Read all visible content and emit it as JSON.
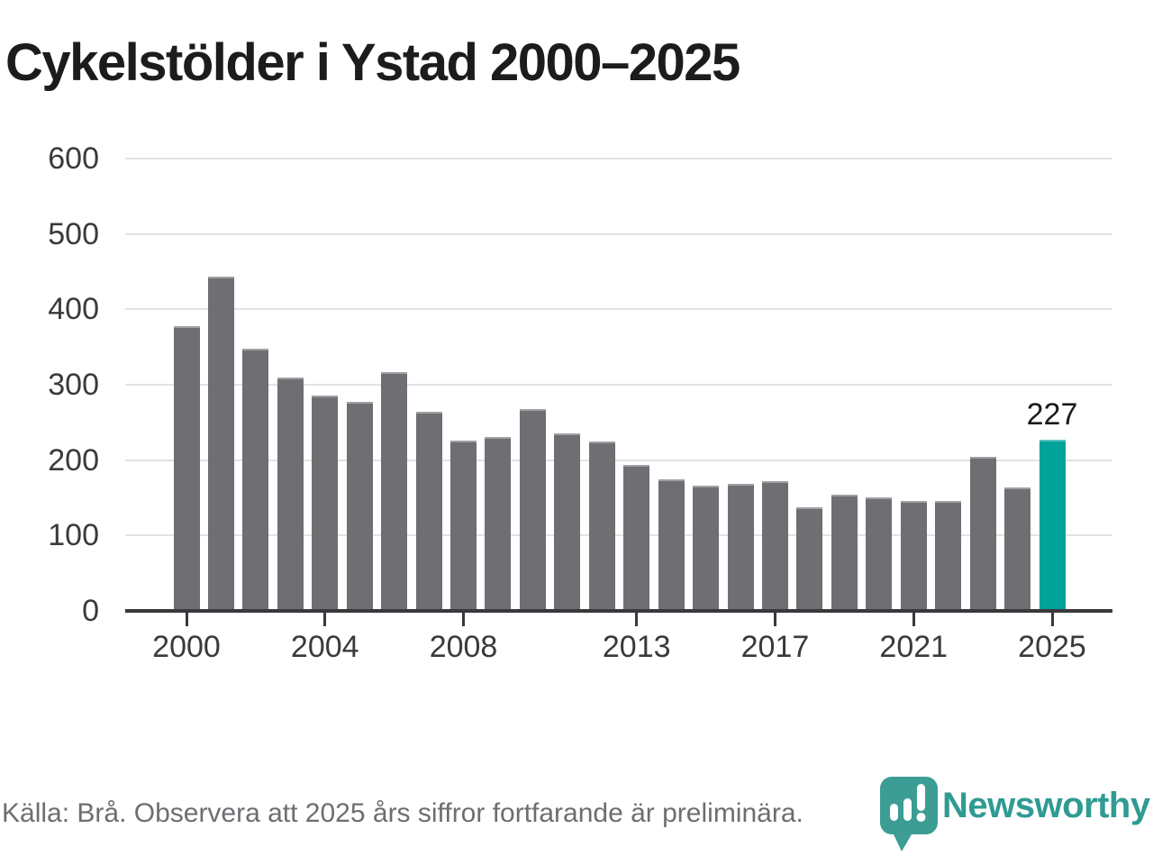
{
  "title": "Cykelstölder i Ystad 2000–2025",
  "chart_data": {
    "type": "bar",
    "categories": [
      2000,
      2001,
      2002,
      2003,
      2004,
      2005,
      2006,
      2007,
      2008,
      2009,
      2010,
      2011,
      2012,
      2013,
      2014,
      2015,
      2016,
      2017,
      2018,
      2019,
      2020,
      2021,
      2022,
      2023,
      2024,
      2025
    ],
    "values": [
      378,
      444,
      348,
      310,
      286,
      277,
      317,
      264,
      226,
      231,
      268,
      236,
      225,
      194,
      174,
      166,
      168,
      172,
      137,
      154,
      151,
      146,
      146,
      204,
      164,
      227
    ],
    "title": "Cykelstölder i Ystad 2000–2025",
    "xlabel": "",
    "ylabel": "",
    "ylim": [
      0,
      600
    ],
    "yticks": [
      0,
      100,
      200,
      300,
      400,
      500,
      600
    ],
    "xticks": [
      2000,
      2004,
      2008,
      2013,
      2017,
      2021,
      2025
    ],
    "grid": true,
    "legend_position": "none",
    "highlight_index": 25,
    "highlight_value_label": "227",
    "bar_color": "#6e6e73",
    "highlight_color": "#00a29a"
  },
  "footer": {
    "source_text": "Källa: Brå. Observera att 2025 års siffror fortfarande är preliminära."
  },
  "logo": {
    "text": "Newsworthy",
    "text_color": "#2f9b93",
    "icon": "newsworthy-bubble-chart-icon",
    "icon_color": "#3c9d95"
  }
}
